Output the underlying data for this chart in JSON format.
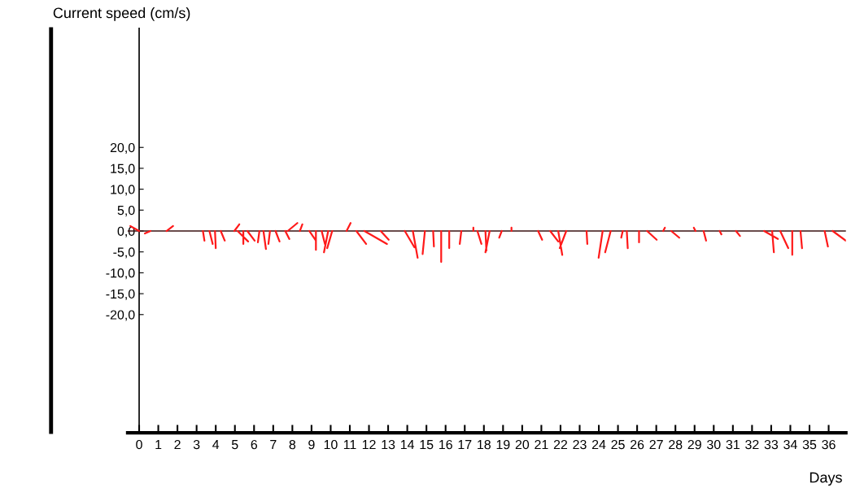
{
  "chart_data": {
    "type": "line",
    "xlabel": "Days",
    "ylabel": "Current speed (cm/s)",
    "xlim": [
      -0.6,
      36.9
    ],
    "ylim": [
      -48.3,
      48.5
    ],
    "xticks": [
      0,
      1,
      2,
      3,
      4,
      5,
      6,
      7,
      8,
      9,
      10,
      11,
      12,
      13,
      14,
      15,
      16,
      17,
      18,
      19,
      20,
      21,
      22,
      23,
      24,
      25,
      26,
      27,
      28,
      29,
      30,
      31,
      32,
      33,
      34,
      35,
      36
    ],
    "yticks": [
      {
        "value": 20,
        "label": "20,0"
      },
      {
        "value": 15,
        "label": "15,0"
      },
      {
        "value": 10,
        "label": "10,0"
      },
      {
        "value": 5,
        "label": "5,0"
      },
      {
        "value": 0,
        "label": "0,0"
      },
      {
        "value": -5,
        "label": "-5,0"
      },
      {
        "value": -10,
        "label": "-10,0"
      },
      {
        "value": -15,
        "label": "-15,0"
      },
      {
        "value": -20,
        "label": "-20,0"
      }
    ],
    "grid": false,
    "legend": false,
    "marker": "none",
    "line_style": "solid",
    "ref_lines": [
      {
        "axis": "y",
        "value": 0,
        "color": "#3a1010"
      }
    ],
    "series": [
      {
        "color": "#ff1a1a",
        "x": [
          0,
          -0.46,
          null,
          0.59,
          0.3,
          null,
          1.43,
          1.77,
          null,
          3.33,
          3.41,
          null,
          3.67,
          3.84,
          null,
          3.96,
          4.0,
          null,
          4.26,
          4.47,
          null,
          4.97,
          5.23,
          null,
          5.14,
          5.69,
          null,
          5.44,
          5.44,
          null,
          5.65,
          6.03,
          null,
          6.28,
          6.2,
          null,
          6.49,
          6.62,
          null,
          6.83,
          6.75,
          null,
          7.12,
          7.33,
          null,
          7.63,
          7.84,
          null,
          7.76,
          8.26,
          null,
          8.39,
          8.52,
          null,
          8.89,
          9.23,
          null,
          9.23,
          9.23,
          null,
          9.53,
          9.7,
          null,
          9.87,
          9.65,
          null,
          10.08,
          9.82,
          null,
          10.83,
          11.04,
          null,
          11.34,
          11.85,
          null,
          11.76,
          12.94,
          null,
          12.61,
          13.03,
          null,
          13.87,
          14.37,
          null,
          14.29,
          14.54,
          null,
          14.92,
          14.8,
          null,
          15.35,
          15.39,
          null,
          15.77,
          15.77,
          null,
          16.19,
          16.19,
          null,
          16.82,
          16.74,
          null,
          17.45,
          17.45,
          null,
          17.66,
          17.87,
          null,
          18.08,
          18.13,
          null,
          18.3,
          18.08,
          null,
          18.93,
          18.8,
          null,
          19.44,
          19.44,
          null,
          20.83,
          21.04,
          null,
          21.46,
          21.88,
          null,
          21.88,
          22.09,
          null,
          22.3,
          21.96,
          null,
          23.36,
          23.4,
          null,
          24.2,
          23.99,
          null,
          24.62,
          24.33,
          null,
          25.25,
          25.17,
          null,
          25.46,
          25.51,
          null,
          26.1,
          26.1,
          null,
          26.52,
          27.02,
          null,
          27.36,
          27.45,
          null,
          27.78,
          28.2,
          null,
          29.05,
          28.96,
          null,
          29.47,
          29.6,
          null,
          30.31,
          30.4,
          null,
          31.16,
          31.37,
          null,
          32.63,
          33.35,
          null,
          33.05,
          33.14,
          null,
          33.47,
          33.89,
          null,
          34.1,
          34.1,
          null,
          34.53,
          34.61,
          null,
          35.79,
          35.96,
          null,
          36.21,
          36.89,
          null
        ],
        "values": [
          0,
          1.2,
          null,
          0,
          -0.6,
          null,
          0,
          1.2,
          null,
          0,
          -2.3,
          null,
          0,
          -3.1,
          null,
          0,
          -4.1,
          null,
          0,
          -2.3,
          null,
          0,
          1.6,
          null,
          0,
          -2.5,
          null,
          0,
          -3.1,
          null,
          0,
          -2.3,
          null,
          0,
          -2.7,
          null,
          0,
          -4.3,
          null,
          0,
          -3.1,
          null,
          0,
          -2.5,
          null,
          0,
          -1.9,
          null,
          0,
          1.9,
          null,
          0,
          1.6,
          null,
          0,
          -2.3,
          null,
          0,
          -4.5,
          null,
          0,
          -3.1,
          null,
          0,
          -5.1,
          null,
          0,
          -4.1,
          null,
          0,
          1.9,
          null,
          0,
          -3.1,
          null,
          0,
          -3.1,
          null,
          0,
          -2.1,
          null,
          0,
          -3.9,
          null,
          0,
          -6.4,
          null,
          0,
          -5.5,
          null,
          0,
          -3.7,
          null,
          0,
          -7.4,
          null,
          0,
          -4.1,
          null,
          0,
          -3.1,
          null,
          0,
          0.8,
          null,
          0,
          -3.1,
          null,
          0,
          -4.7,
          null,
          0,
          -5.1,
          null,
          0,
          -1.6,
          null,
          0,
          0.8,
          null,
          0,
          -2.1,
          null,
          0,
          -2.5,
          null,
          0,
          -5.7,
          null,
          0,
          -4.1,
          null,
          0,
          -3.1,
          null,
          0,
          -6.4,
          null,
          0,
          -5.1,
          null,
          0,
          -1.6,
          null,
          0,
          -4.1,
          null,
          0,
          -2.7,
          null,
          0,
          -2.1,
          null,
          0,
          0.8,
          null,
          0,
          -1.6,
          null,
          0,
          0.8,
          null,
          0,
          -2.3,
          null,
          0,
          -0.8,
          null,
          0,
          -1.2,
          null,
          0,
          -1.9,
          null,
          0,
          -5.1,
          null,
          0,
          -4.1,
          null,
          0,
          -5.7,
          null,
          0,
          -4.1,
          null,
          0,
          -3.7,
          null,
          0,
          -2.3,
          null
        ]
      }
    ]
  }
}
